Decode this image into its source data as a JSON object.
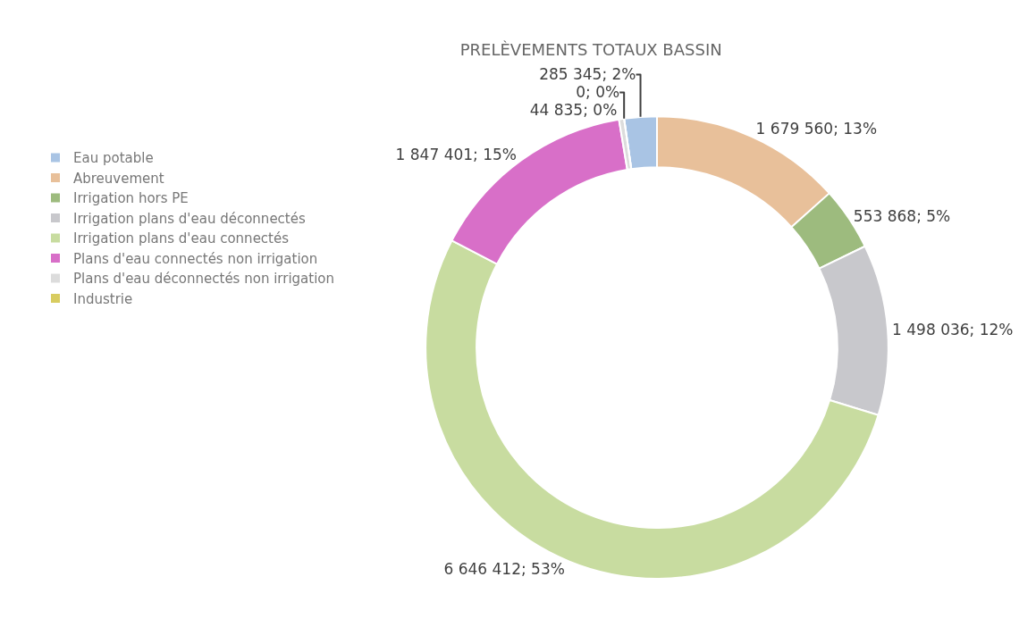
{
  "chart_data": {
    "type": "donut",
    "title": "PRELÈVEMENTS TOTAUX BASSIN",
    "categories": [
      "Eau potable",
      "Abreuvement",
      "Irrigation hors PE",
      "Irrigation plans d'eau déconnectés",
      "Irrigation plans d'eau connectés",
      "Plans d'eau connectés non irrigation",
      "Plans d'eau déconnectés non irrigation",
      "Industrie"
    ],
    "values": [
      285345,
      1679560,
      553868,
      1498036,
      6646412,
      1847401,
      44835,
      0
    ],
    "value_labels": [
      "285 345; 2%",
      "1 679 560; 13%",
      "553 868; 5%",
      "1 498 036; 12%",
      "6 646 412; 53%",
      "1 847 401; 15%",
      "44 835; 0%",
      "0; 0%"
    ],
    "colors": [
      "#a9c4e4",
      "#e8c09a",
      "#9dbb7e",
      "#c8c8cc",
      "#c8dca0",
      "#d86fc8",
      "#dcdcdc",
      "#d8cc60"
    ],
    "legend": "left"
  }
}
